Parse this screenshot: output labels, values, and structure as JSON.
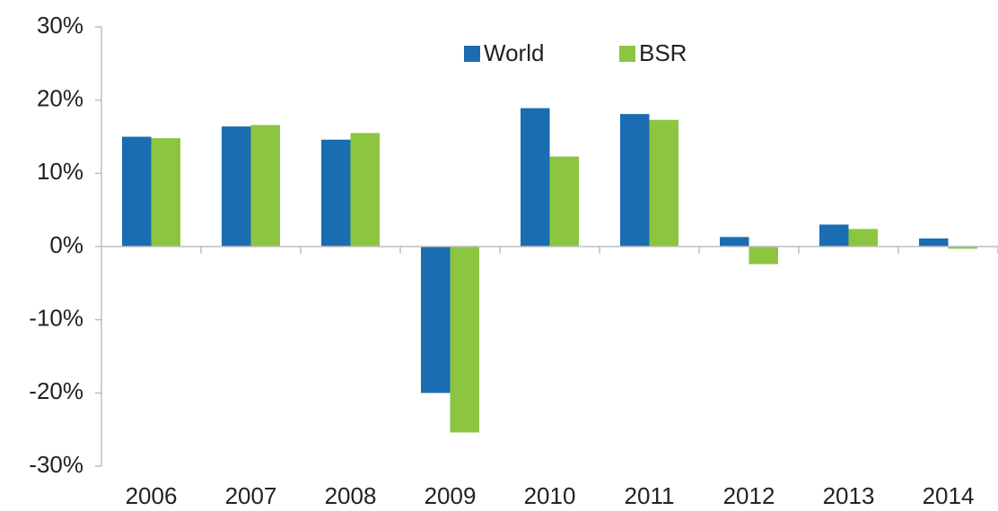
{
  "chart_data": {
    "type": "bar",
    "categories": [
      "2006",
      "2007",
      "2008",
      "2009",
      "2010",
      "2011",
      "2012",
      "2013",
      "2014"
    ],
    "series": [
      {
        "name": "World",
        "color": "#1a6db1",
        "values": [
          15,
          16.4,
          14.6,
          -20,
          18.9,
          18.1,
          1.3,
          3,
          1.1
        ]
      },
      {
        "name": "BSR",
        "color": "#8cc540",
        "values": [
          14.8,
          16.6,
          15.5,
          -25.4,
          12.3,
          17.3,
          -2.4,
          2.4,
          -0.3
        ]
      }
    ],
    "ylim": [
      -30,
      30
    ],
    "yticks": [
      {
        "value": -30,
        "label": "-30%"
      },
      {
        "value": -20,
        "label": "-20%"
      },
      {
        "value": -10,
        "label": "-10%"
      },
      {
        "value": 0,
        "label": "0%"
      },
      {
        "value": 10,
        "label": "10%"
      },
      {
        "value": 20,
        "label": "20%"
      },
      {
        "value": 30,
        "label": "30%"
      }
    ],
    "grid": false,
    "legend": "top"
  }
}
